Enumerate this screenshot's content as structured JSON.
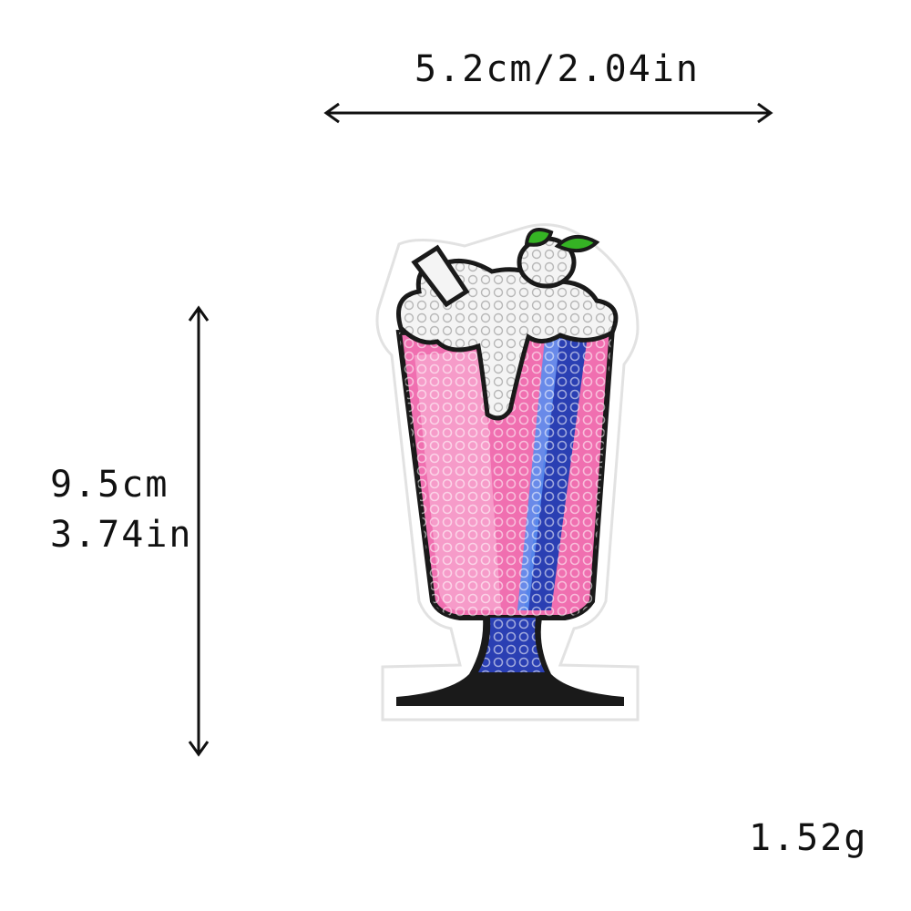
{
  "dimensions": {
    "width_label": "5.2cm/2.04in",
    "height_cm": "9.5cm",
    "height_in": "3.74in",
    "weight": "1.52g"
  },
  "product": {
    "icon": "milkshake-sequin-patch-icon",
    "colors": {
      "pink": "#f06fb0",
      "light_pink": "#f8a6cf",
      "blue": "#2a3fb3",
      "white": "#f4f4f4",
      "leaf": "#35b324",
      "outline": "#1a1a1a",
      "felt": "#ffffff"
    }
  }
}
